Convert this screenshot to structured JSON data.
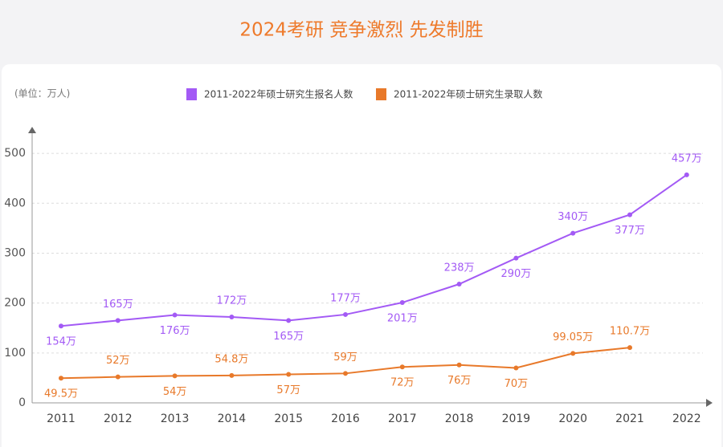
{
  "chart_data": {
    "type": "line",
    "title": "2024考研 竞争激烈 先发制胜",
    "unit": "(单位：万人)",
    "categories": [
      "2011",
      "2012",
      "2013",
      "2014",
      "2015",
      "2016",
      "2017",
      "2018",
      "2019",
      "2020",
      "2021",
      "2022"
    ],
    "series": [
      {
        "name": "2011-2022年硕士研究生报名人数",
        "color": "#a35af5",
        "values": [
          154,
          165,
          176,
          172,
          165,
          177,
          201,
          238,
          290,
          340,
          377,
          457
        ],
        "value_labels": [
          "154万",
          "165万",
          "176万",
          "172万",
          "165万",
          "177万",
          "201万",
          "238万",
          "290万",
          "340万",
          "377万",
          "457万"
        ]
      },
      {
        "name": "2011-2022年硕士研究生录取人数",
        "color": "#e8792a",
        "values": [
          49.5,
          52,
          54,
          54.8,
          57,
          59,
          72,
          76,
          70,
          99.05,
          110.7,
          null
        ],
        "value_labels": [
          "49.5万",
          "52万",
          "54万",
          "54.8万",
          "57万",
          "59万",
          "72万",
          "76万",
          "70万",
          "99.05万",
          "110.7万",
          null
        ]
      }
    ],
    "ylim": [
      0,
      550
    ],
    "yticks": [
      0,
      100,
      200,
      300,
      400,
      500
    ],
    "grid": true
  }
}
